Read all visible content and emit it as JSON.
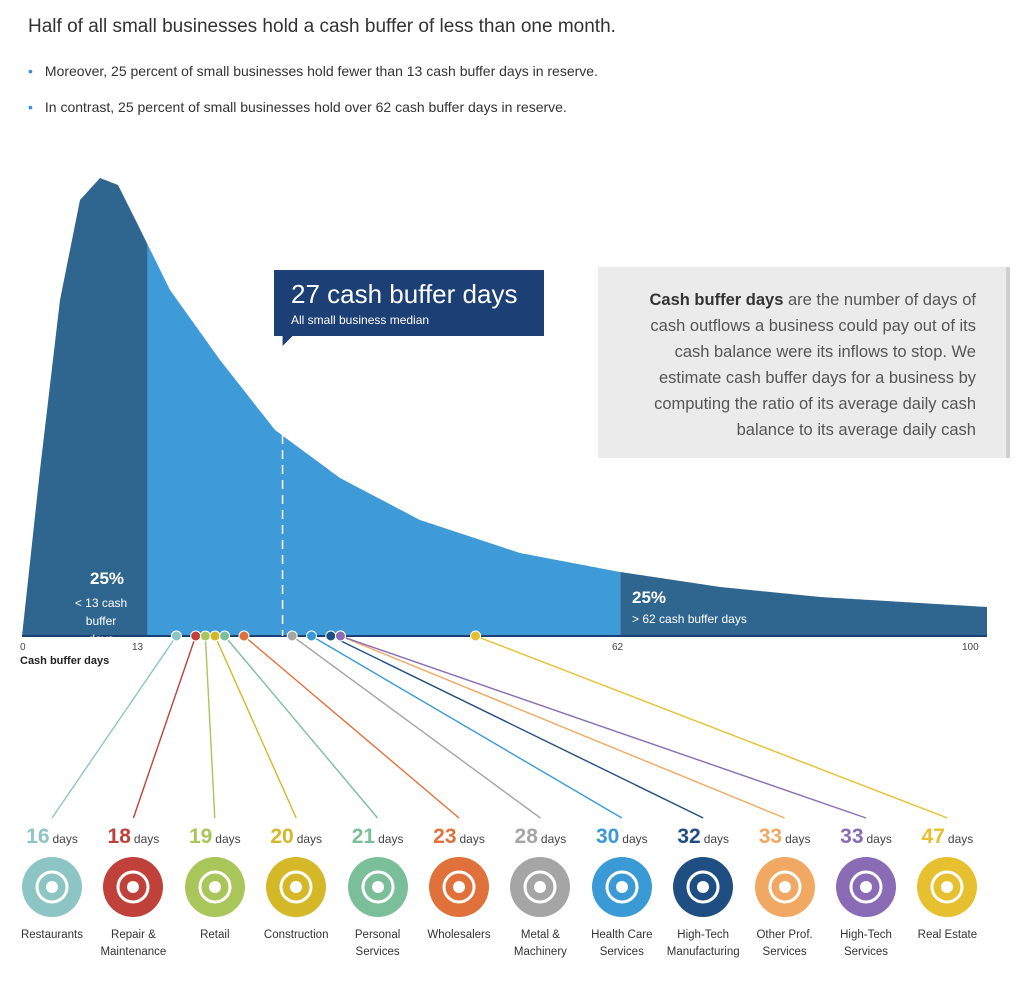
{
  "headline": "Half of all small businesses hold a cash buffer of less than one month.",
  "bullets": [
    "Moreover, 25 percent of small businesses hold fewer than 13 cash buffer days in reserve.",
    "In contrast, 25 percent of small businesses hold over 62 cash buffer days in reserve."
  ],
  "median_callout": {
    "title": "27 cash buffer days",
    "subtitle": "All small business median"
  },
  "definition": {
    "term": "Cash buffer days",
    "text": "are the number of days of cash outflows a business could pay out of its cash balance were its inflows to stop. We estimate cash buffer days for a business by computing the ratio of its average daily cash balance to its average daily cash"
  },
  "bottom_quartile": {
    "pct": "25%",
    "line1": "< 13 cash",
    "line2": "buffer days"
  },
  "top_quartile": {
    "pct": "25%",
    "line1": "> 62 cash buffer days"
  },
  "chart_data": {
    "type": "area",
    "xlabel": "Cash buffer days",
    "xlim": [
      0,
      100
    ],
    "x_ticks": [
      "0",
      "13",
      "62",
      "100"
    ],
    "quartiles": {
      "p25": 13,
      "median": 27,
      "p75": 62
    },
    "colors": {
      "tails": "#2f6690",
      "body": "#3e9bd8",
      "callout": "#1c3f75"
    },
    "industries": [
      {
        "name": "Restaurants",
        "line2": "",
        "days": 16,
        "color": "#8cc5c4",
        "icon": "plate-icon"
      },
      {
        "name": "Repair &",
        "line2": "Maintenance",
        "days": 18,
        "color": "#c0413a",
        "icon": "toolbox-icon"
      },
      {
        "name": "Retail",
        "line2": "",
        "days": 19,
        "color": "#a8c65a",
        "icon": "shopping-bag-icon"
      },
      {
        "name": "Construction",
        "line2": "",
        "days": 20,
        "color": "#d4b828",
        "icon": "hard-hat-icon"
      },
      {
        "name": "Personal",
        "line2": "Services",
        "days": 21,
        "color": "#7bbf9a",
        "icon": "hanger-icon"
      },
      {
        "name": "Wholesalers",
        "line2": "",
        "days": 23,
        "color": "#e0713a",
        "icon": "boxes-icon"
      },
      {
        "name": "Metal &",
        "line2": "Machinery",
        "days": 28,
        "color": "#a5a5a5",
        "icon": "gears-icon"
      },
      {
        "name": "Health Care",
        "line2": "Services",
        "days": 30,
        "color": "#3a9ad6",
        "icon": "caduceus-icon"
      },
      {
        "name": "High-Tech",
        "line2": "Manufacturing",
        "days": 32,
        "color": "#1f4f82",
        "icon": "chip-icon"
      },
      {
        "name": "Other Prof.",
        "line2": "Services",
        "days": 33,
        "color": "#f0a863",
        "icon": "briefcase-icon"
      },
      {
        "name": "High-Tech",
        "line2": "Services",
        "days": 33,
        "color": "#8a6bb5",
        "icon": "computer-icon"
      },
      {
        "name": "Real Estate",
        "line2": "",
        "days": 47,
        "color": "#e6c02e",
        "icon": "house-sign-icon"
      }
    ],
    "unit": "days"
  }
}
